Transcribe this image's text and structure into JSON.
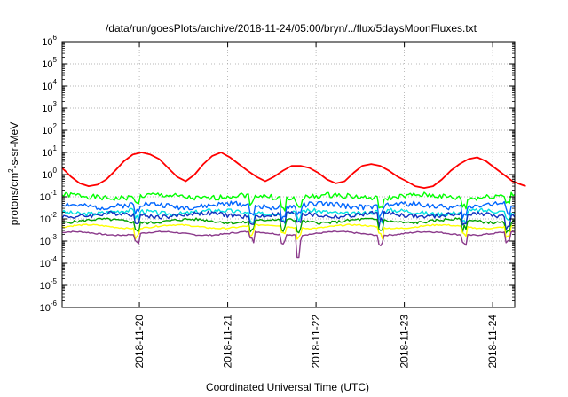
{
  "chart_data": {
    "type": "line",
    "title": "/data/run/goesPlots/archive/2018-11-24/05:00/bryn/../flux/5daysMoonFluxes.txt",
    "xlabel": "Coordinated Universal Time (UTC)",
    "ylabel_parts": {
      "base": "protons/cm",
      "sup": "2",
      "rest": "-s-sr-MeV"
    },
    "x_range": [
      "2018-11-19T03:00",
      "2018-11-24T06:00"
    ],
    "x_ticks": [
      "2018-11-20",
      "2018-11-21",
      "2018-11-22",
      "2018-11-23",
      "2018-11-24"
    ],
    "y_scale": "log",
    "y_range": [
      1e-06,
      1000000.0
    ],
    "y_ticks": [
      {
        "base": "10",
        "exp": "-6"
      },
      {
        "base": "10",
        "exp": "-5"
      },
      {
        "base": "10",
        "exp": "-4"
      },
      {
        "base": "10",
        "exp": "-3"
      },
      {
        "base": "10",
        "exp": "-2"
      },
      {
        "base": "10",
        "exp": "-1"
      },
      {
        "base": "10",
        "exp": "0"
      },
      {
        "base": "10",
        "exp": "1"
      },
      {
        "base": "10",
        "exp": "2"
      },
      {
        "base": "10",
        "exp": "3"
      },
      {
        "base": "10",
        "exp": "4"
      },
      {
        "base": "10",
        "exp": "5"
      },
      {
        "base": "10",
        "exp": "6"
      }
    ],
    "grid": true,
    "series": [
      {
        "color": "#ff0000",
        "points": [
          [
            0,
            2
          ],
          [
            0.1,
            0.8
          ],
          [
            0.2,
            0.4
          ],
          [
            0.3,
            0.3
          ],
          [
            0.4,
            0.35
          ],
          [
            0.5,
            0.6
          ],
          [
            0.6,
            1.5
          ],
          [
            0.7,
            4
          ],
          [
            0.8,
            8
          ],
          [
            0.9,
            10
          ],
          [
            1.0,
            8
          ],
          [
            1.1,
            5
          ],
          [
            1.2,
            2
          ],
          [
            1.3,
            0.8
          ],
          [
            1.4,
            0.5
          ],
          [
            1.5,
            1
          ],
          [
            1.6,
            3
          ],
          [
            1.7,
            7
          ],
          [
            1.8,
            10
          ],
          [
            1.9,
            6
          ],
          [
            2.0,
            3
          ],
          [
            2.1,
            1.5
          ],
          [
            2.2,
            0.8
          ],
          [
            2.3,
            0.5
          ],
          [
            2.4,
            0.8
          ],
          [
            2.5,
            1.5
          ],
          [
            2.6,
            2.5
          ],
          [
            2.7,
            2.5
          ],
          [
            2.8,
            2
          ],
          [
            2.9,
            1.2
          ],
          [
            3.0,
            0.6
          ],
          [
            3.1,
            0.4
          ],
          [
            3.2,
            0.5
          ],
          [
            3.3,
            1.2
          ],
          [
            3.4,
            2.5
          ],
          [
            3.5,
            3
          ],
          [
            3.6,
            2.5
          ],
          [
            3.7,
            1.5
          ],
          [
            3.8,
            0.8
          ],
          [
            3.9,
            0.5
          ],
          [
            4.0,
            0.3
          ],
          [
            4.1,
            0.25
          ],
          [
            4.2,
            0.3
          ],
          [
            4.3,
            0.6
          ],
          [
            4.4,
            1.5
          ],
          [
            4.5,
            3
          ],
          [
            4.6,
            5
          ],
          [
            4.7,
            6
          ],
          [
            4.8,
            4
          ],
          [
            4.9,
            2
          ],
          [
            5.0,
            1
          ],
          [
            5.1,
            0.5
          ],
          [
            5.2,
            0.35
          ],
          [
            5.25,
            0.3
          ]
        ]
      },
      {
        "color": "#00ff00",
        "base": 0.1,
        "amp": 0.12,
        "seed": 1
      },
      {
        "color": "#0066ff",
        "base": 0.04,
        "amp": 0.12,
        "seed": 2
      },
      {
        "color": "#00e0e0",
        "base": 0.02,
        "amp": 0.1,
        "seed": 3
      },
      {
        "color": "#1030c0",
        "base": 0.015,
        "amp": 0.1,
        "seed": 4
      },
      {
        "color": "#00a000",
        "base": 0.008,
        "amp": 0.06,
        "seed": 5
      },
      {
        "color": "#ffff00",
        "base": 0.0045,
        "amp": 0.03,
        "seed": 6
      },
      {
        "color": "#8b3a8b",
        "base": 0.0022,
        "amp": 0.03,
        "seed": 7
      }
    ]
  }
}
